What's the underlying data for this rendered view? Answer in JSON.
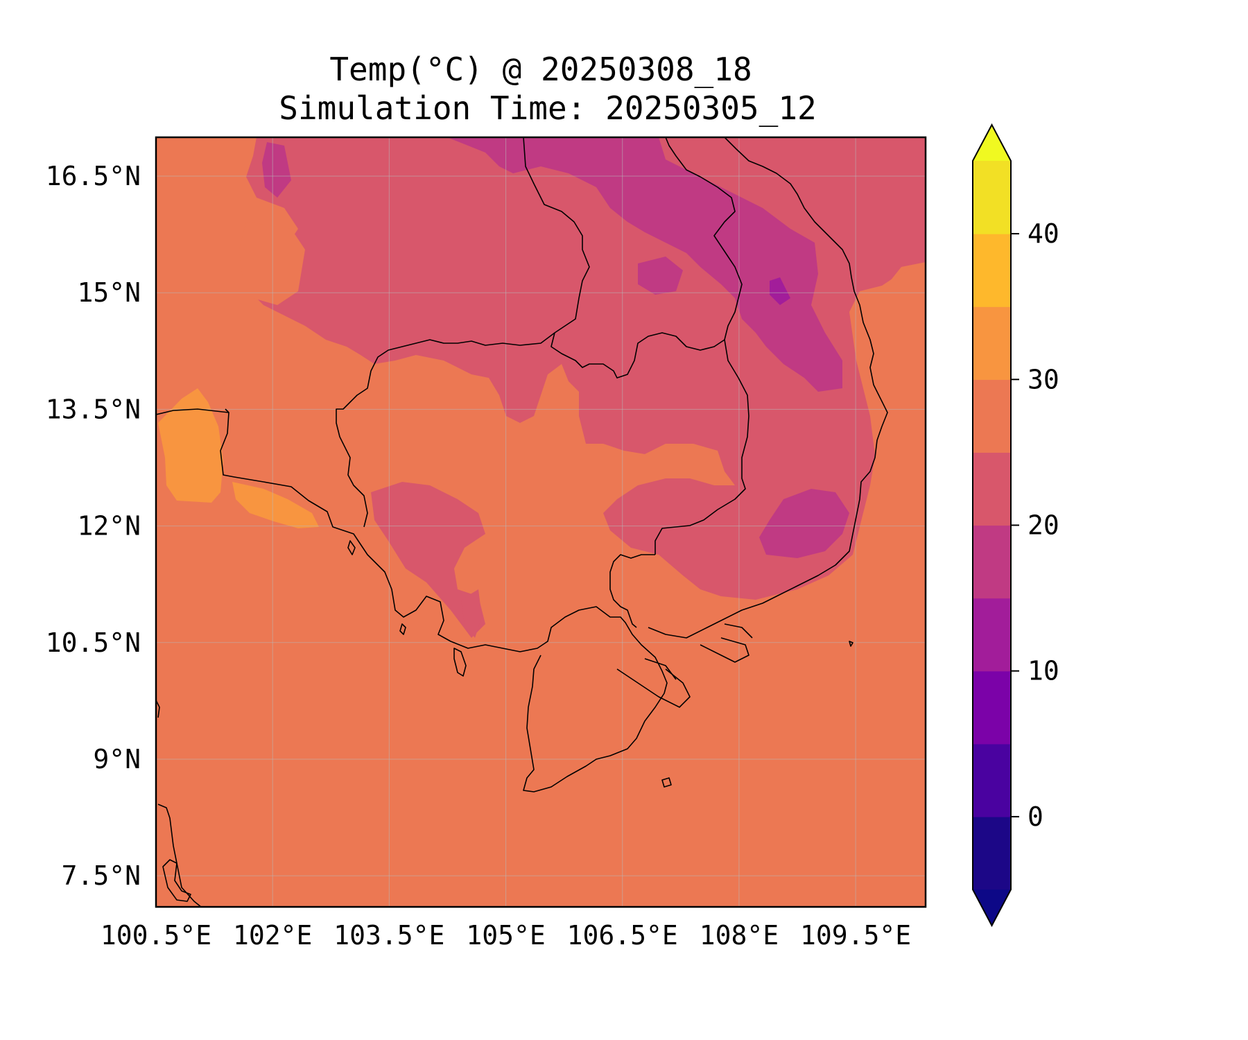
{
  "title_line1": "Temp(°C) @ 20250308_18",
  "title_line2": "Simulation Time: 20250305_12",
  "chart_data": {
    "type": "heatmap",
    "variable": "Temp(°C)",
    "valid_time": "20250308_18",
    "simulation_time": "20250305_12",
    "x_ticks": [
      "100.5°E",
      "102°E",
      "103.5°E",
      "105°E",
      "106.5°E",
      "108°E",
      "109.5°E"
    ],
    "y_ticks": [
      "16.5°N",
      "15°N",
      "13.5°N",
      "12°N",
      "10.5°N",
      "9°N",
      "7.5°N"
    ],
    "x_tick_values": [
      100.5,
      102,
      103.5,
      105,
      106.5,
      108,
      109.5
    ],
    "y_tick_values": [
      16.5,
      15,
      13.5,
      12,
      10.5,
      9,
      7.5
    ],
    "xlim": [
      100.5,
      110.4
    ],
    "ylim": [
      7.1,
      17.0
    ],
    "grid": true,
    "colorbar": {
      "colormap": "plasma",
      "levels": [
        -5,
        0,
        5,
        10,
        15,
        20,
        25,
        30,
        35,
        40,
        45
      ],
      "tick_labels": [
        "0",
        "10",
        "20",
        "30",
        "40"
      ],
      "tick_values": [
        0,
        10,
        20,
        30,
        40
      ],
      "extend": "both",
      "colors": [
        "#1c0787",
        "#4a02a0",
        "#7b02a8",
        "#a21d9a",
        "#c03a83",
        "#d8576b",
        "#ec7853",
        "#f89540",
        "#feb82c",
        "#f2e025"
      ],
      "under_color": "#0d0887",
      "over_color": "#f0f921"
    }
  }
}
